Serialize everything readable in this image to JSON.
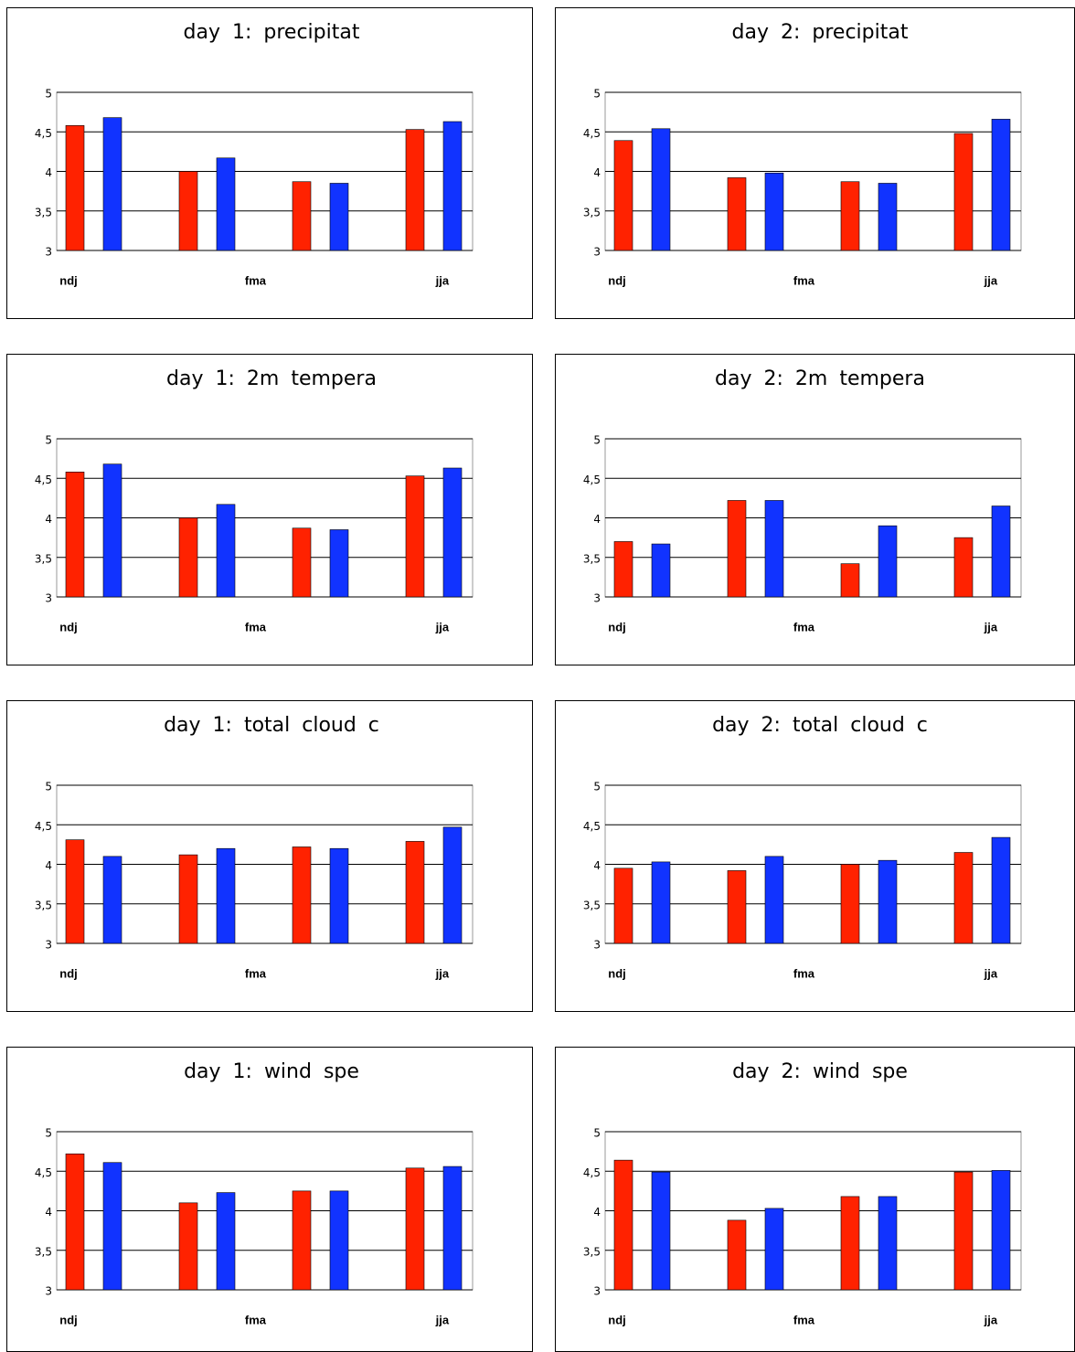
{
  "chart_data": [
    {
      "type": "bar",
      "title": "day 1: precipitat",
      "categories": [
        null,
        null,
        null,
        null
      ],
      "xticks": [
        {
          "value": 0,
          "label": "ndj"
        },
        {
          "value": 1.5,
          "label": "fma"
        },
        {
          "value": 3,
          "label": "jja"
        }
      ],
      "series": [
        {
          "color": "#ff2200",
          "values": [
            4.58,
            4.0,
            3.87,
            4.53
          ]
        },
        {
          "color": "#1133ff",
          "values": [
            4.68,
            4.17,
            3.85,
            4.63
          ]
        }
      ],
      "ylim": [
        3,
        5
      ],
      "yticks": [
        3,
        {
          "value": 3.5,
          "label": "3,5"
        },
        4,
        {
          "value": 4.5,
          "label": "4,5"
        },
        5
      ],
      "grid": true
    },
    {
      "type": "bar",
      "title": "day 2: precipitat",
      "categories": [
        null,
        null,
        null,
        null
      ],
      "xticks": [
        {
          "value": 0,
          "label": "ndj"
        },
        {
          "value": 1.5,
          "label": "fma"
        },
        {
          "value": 3,
          "label": "jja"
        }
      ],
      "series": [
        {
          "color": "#ff2200",
          "values": [
            4.39,
            3.92,
            3.87,
            4.48
          ]
        },
        {
          "color": "#1133ff",
          "values": [
            4.54,
            3.98,
            3.85,
            4.66
          ]
        }
      ],
      "ylim": [
        3,
        5
      ],
      "yticks": [
        3,
        {
          "value": 3.5,
          "label": "3,5"
        },
        4,
        {
          "value": 4.5,
          "label": "4,5"
        },
        5
      ],
      "grid": true
    },
    {
      "type": "bar",
      "title": "day 1: 2m tempera",
      "categories": [
        null,
        null,
        null,
        null
      ],
      "xticks": [
        {
          "value": 0,
          "label": "ndj"
        },
        {
          "value": 1.5,
          "label": "fma"
        },
        {
          "value": 3,
          "label": "jja"
        }
      ],
      "series": [
        {
          "color": "#ff2200",
          "values": [
            4.58,
            4.0,
            3.87,
            4.53
          ]
        },
        {
          "color": "#1133ff",
          "values": [
            4.68,
            4.17,
            3.85,
            4.63
          ]
        }
      ],
      "ylim": [
        3,
        5
      ],
      "yticks": [
        3,
        {
          "value": 3.5,
          "label": "3,5"
        },
        4,
        {
          "value": 4.5,
          "label": "4,5"
        },
        5
      ],
      "grid": true
    },
    {
      "type": "bar",
      "title": "day 2: 2m tempera",
      "categories": [
        null,
        null,
        null,
        null
      ],
      "xticks": [
        {
          "value": 0,
          "label": "ndj"
        },
        {
          "value": 1.5,
          "label": "fma"
        },
        {
          "value": 3,
          "label": "jja"
        }
      ],
      "series": [
        {
          "color": "#ff2200",
          "values": [
            3.7,
            4.22,
            3.42,
            3.75
          ]
        },
        {
          "color": "#1133ff",
          "values": [
            3.67,
            4.22,
            3.9,
            4.15
          ]
        }
      ],
      "ylim": [
        3,
        5
      ],
      "yticks": [
        3,
        {
          "value": 3.5,
          "label": "3,5"
        },
        4,
        {
          "value": 4.5,
          "label": "4,5"
        },
        5
      ],
      "grid": true
    },
    {
      "type": "bar",
      "title": "day 1: total cloud c",
      "categories": [
        null,
        null,
        null,
        null
      ],
      "xticks": [
        {
          "value": 0,
          "label": "ndj"
        },
        {
          "value": 1.5,
          "label": "fma"
        },
        {
          "value": 3,
          "label": "jja"
        }
      ],
      "series": [
        {
          "color": "#ff2200",
          "values": [
            4.31,
            4.12,
            4.22,
            4.29
          ]
        },
        {
          "color": "#1133ff",
          "values": [
            4.1,
            4.2,
            4.2,
            4.47
          ]
        }
      ],
      "ylim": [
        3,
        5
      ],
      "yticks": [
        3,
        {
          "value": 3.5,
          "label": "3,5"
        },
        4,
        {
          "value": 4.5,
          "label": "4,5"
        },
        5
      ],
      "grid": true
    },
    {
      "type": "bar",
      "title": "day 2: total cloud c",
      "categories": [
        null,
        null,
        null,
        null
      ],
      "xticks": [
        {
          "value": 0,
          "label": "ndj"
        },
        {
          "value": 1.5,
          "label": "fma"
        },
        {
          "value": 3,
          "label": "jja"
        }
      ],
      "series": [
        {
          "color": "#ff2200",
          "values": [
            3.95,
            3.92,
            4.0,
            4.15
          ]
        },
        {
          "color": "#1133ff",
          "values": [
            4.03,
            4.1,
            4.05,
            4.34
          ]
        }
      ],
      "ylim": [
        3,
        5
      ],
      "yticks": [
        3,
        {
          "value": 3.5,
          "label": "3,5"
        },
        4,
        {
          "value": 4.5,
          "label": "4,5"
        },
        5
      ],
      "grid": true
    },
    {
      "type": "bar",
      "title": "day 1: wind spe",
      "categories": [
        null,
        null,
        null,
        null
      ],
      "xticks": [
        {
          "value": 0,
          "label": "ndj"
        },
        {
          "value": 1.5,
          "label": "fma"
        },
        {
          "value": 3,
          "label": "jja"
        }
      ],
      "series": [
        {
          "color": "#ff2200",
          "values": [
            4.72,
            4.1,
            4.25,
            4.54
          ]
        },
        {
          "color": "#1133ff",
          "values": [
            4.61,
            4.23,
            4.25,
            4.56
          ]
        }
      ],
      "ylim": [
        3,
        5
      ],
      "yticks": [
        3,
        {
          "value": 3.5,
          "label": "3,5"
        },
        4,
        {
          "value": 4.5,
          "label": "4,5"
        },
        5
      ],
      "grid": true
    },
    {
      "type": "bar",
      "title": "day 2: wind spe",
      "categories": [
        null,
        null,
        null,
        null
      ],
      "xticks": [
        {
          "value": 0,
          "label": "ndj"
        },
        {
          "value": 1.5,
          "label": "fma"
        },
        {
          "value": 3,
          "label": "jja"
        }
      ],
      "series": [
        {
          "color": "#ff2200",
          "values": [
            4.64,
            3.88,
            4.18,
            4.49
          ]
        },
        {
          "color": "#1133ff",
          "values": [
            4.49,
            4.03,
            4.18,
            4.51
          ]
        }
      ],
      "ylim": [
        3,
        5
      ],
      "yticks": [
        3,
        {
          "value": 3.5,
          "label": "3,5"
        },
        4,
        {
          "value": 4.5,
          "label": "4,5"
        },
        5
      ],
      "grid": true
    }
  ]
}
